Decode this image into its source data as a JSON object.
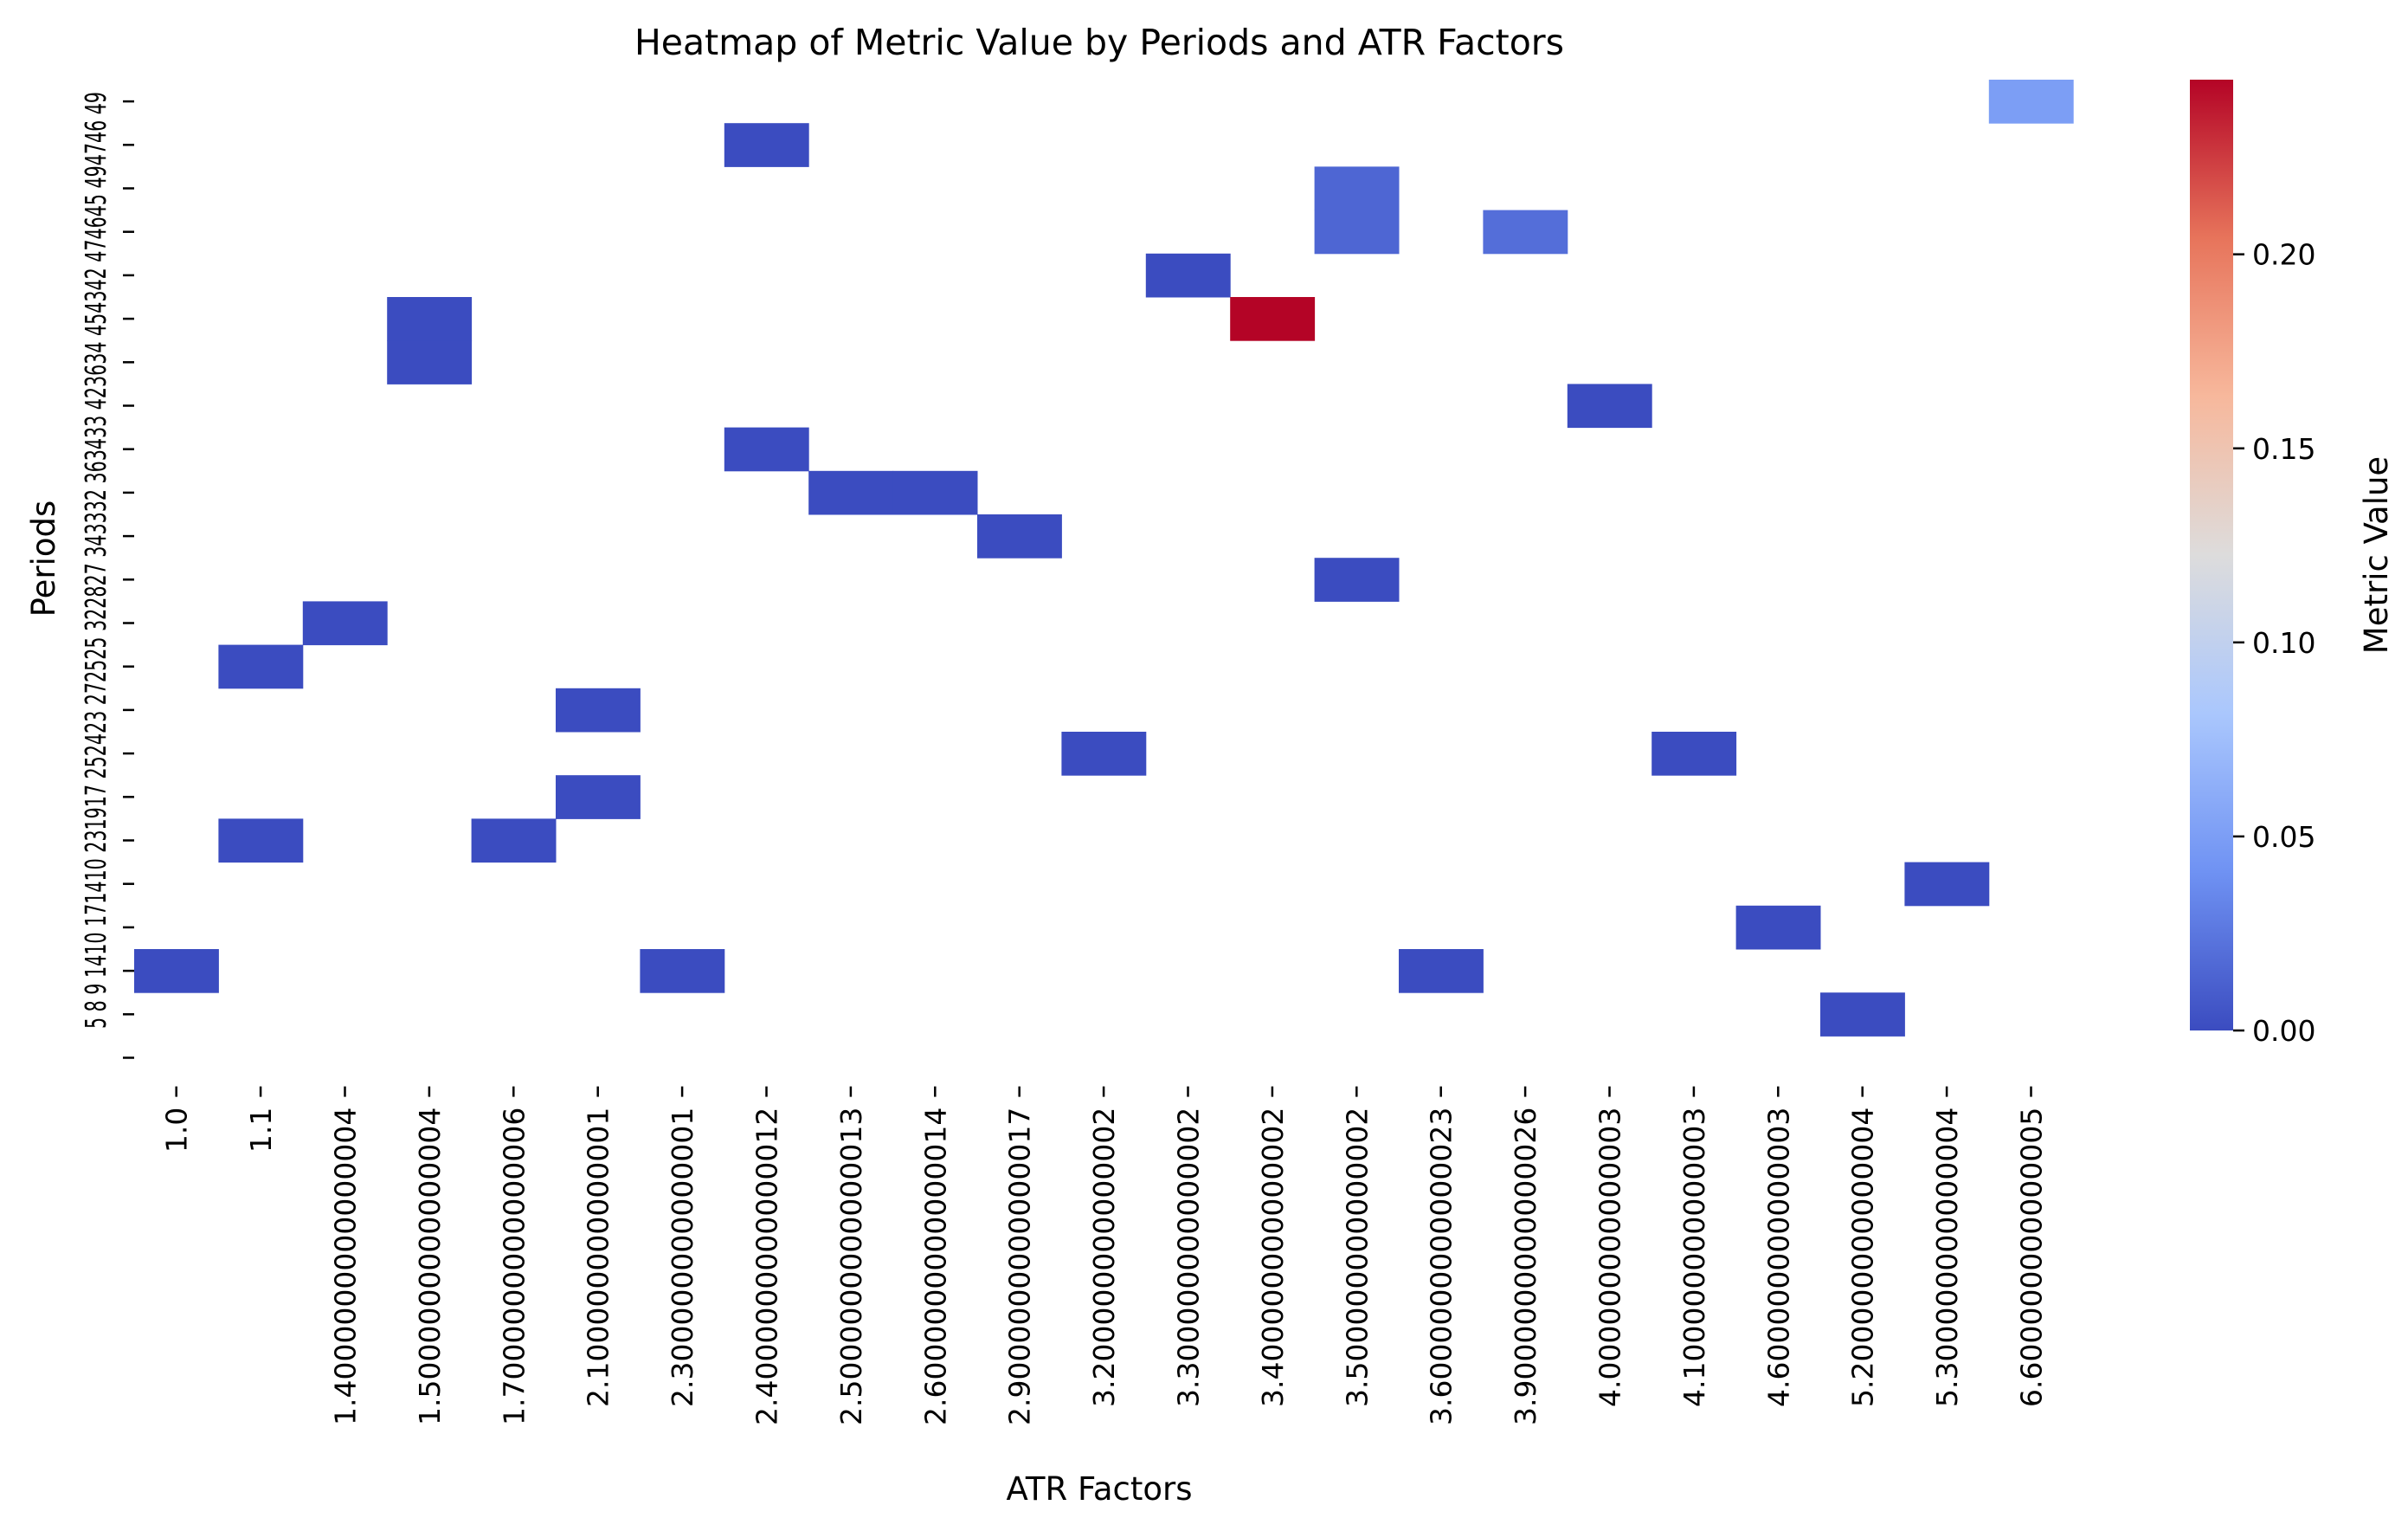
{
  "chart_data": {
    "type": "heatmap",
    "title": "Heatmap of Metric Value by Periods and ATR Factors",
    "xlabel": "ATR Factors",
    "ylabel": "Periods",
    "colorbar_label": "Metric Value",
    "colormap": "coolwarm",
    "colormap_stops": [
      "#3b4cc0",
      "#6f92f3",
      "#aac7fd",
      "#dddcdc",
      "#f7b89c",
      "#e7745b",
      "#b40426"
    ],
    "value_range": [
      0,
      0.245
    ],
    "colorbar_ticks": [
      "0.00",
      "0.05",
      "0.10",
      "0.15",
      "0.20"
    ],
    "x_categories": [
      "1.0",
      "1.1",
      "1.4000000000000004",
      "1.5000000000000004",
      "1.7000000000000006",
      "2.100000000000001",
      "2.300000000000001",
      "2.4000000000000012",
      "2.5000000000000013",
      "2.6000000000000014",
      "2.9000000000000017",
      "3.200000000000002",
      "3.300000000000002",
      "3.400000000000002",
      "3.500000000000002",
      "3.6000000000000023",
      "3.9000000000000026",
      "4.000000000000003",
      "4.100000000000003",
      "4.600000000000003",
      "5.200000000000004",
      "5.300000000000004",
      "6.600000000000005"
    ],
    "y_categories": [
      "5",
      "8",
      "9",
      "10",
      "14",
      "17",
      "19",
      "23",
      "24",
      "25",
      "27",
      "28",
      "32",
      "33",
      "34",
      "36",
      "42",
      "43",
      "45",
      "46",
      "47",
      "49",
      "50"
    ],
    "y_tick_labels_visible": [
      "5",
      "8",
      "9",
      "10",
      "14",
      "17",
      "19",
      "23",
      "24",
      "25",
      "27",
      "28",
      "32",
      "33",
      "34",
      "36",
      "42",
      "43",
      "45",
      "46",
      "47",
      "49",
      "50"
    ],
    "y_tick_text": "5 8 9 1410 171410 231917 252423 272525 322827 343332 363433 423634 454342 474645 494746 49",
    "cells": [
      {
        "x": "6.600000000000005",
        "y": "5",
        "value": 0.05
      },
      {
        "x": "2.4000000000000012",
        "y": "8",
        "value": 0.0
      },
      {
        "x": "3.500000000000002",
        "y": "9",
        "value": 0.015
      },
      {
        "x": "3.500000000000002",
        "y": "10",
        "value": 0.015
      },
      {
        "x": "3.9000000000000026",
        "y": "10",
        "value": 0.02
      },
      {
        "x": "3.300000000000002",
        "y": "14",
        "value": 0.0
      },
      {
        "x": "3.400000000000002",
        "y": "17",
        "value": 0.245
      },
      {
        "x": "1.5000000000000004",
        "y": "17",
        "value": 0.0
      },
      {
        "x": "1.5000000000000004",
        "y": "19",
        "value": 0.0
      },
      {
        "x": "4.000000000000003",
        "y": "23",
        "value": 0.0
      },
      {
        "x": "2.4000000000000012",
        "y": "24",
        "value": 0.0
      },
      {
        "x": "2.5000000000000013",
        "y": "25",
        "value": 0.0
      },
      {
        "x": "2.6000000000000014",
        "y": "25",
        "value": 0.0
      },
      {
        "x": "2.9000000000000017",
        "y": "27",
        "value": 0.0
      },
      {
        "x": "3.500000000000002",
        "y": "28",
        "value": 0.0
      },
      {
        "x": "1.4000000000000004",
        "y": "32",
        "value": 0.0
      },
      {
        "x": "1.1",
        "y": "33",
        "value": 0.0
      },
      {
        "x": "2.100000000000001",
        "y": "34",
        "value": 0.0
      },
      {
        "x": "3.200000000000002",
        "y": "36",
        "value": 0.0
      },
      {
        "x": "4.100000000000003",
        "y": "36",
        "value": 0.0
      },
      {
        "x": "2.100000000000001",
        "y": "42",
        "value": 0.0
      },
      {
        "x": "1.1",
        "y": "43",
        "value": 0.0
      },
      {
        "x": "1.7000000000000006",
        "y": "43",
        "value": 0.0
      },
      {
        "x": "5.300000000000004",
        "y": "45",
        "value": 0.0
      },
      {
        "x": "4.600000000000003",
        "y": "46",
        "value": 0.0
      },
      {
        "x": "1.0",
        "y": "47",
        "value": 0.0
      },
      {
        "x": "2.300000000000001",
        "y": "47",
        "value": 0.0
      },
      {
        "x": "3.6000000000000023",
        "y": "47",
        "value": 0.0
      },
      {
        "x": "5.200000000000004",
        "y": "49",
        "value": 0.0
      }
    ]
  }
}
